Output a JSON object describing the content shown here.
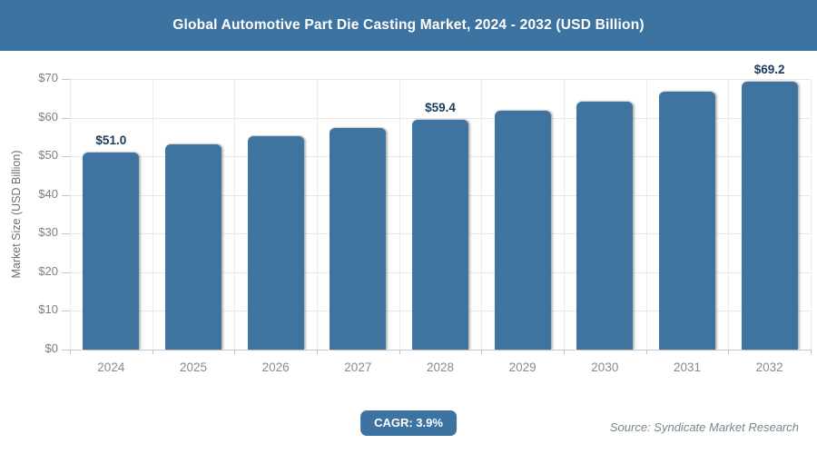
{
  "header": {
    "title": "Global Automotive Part Die Casting Market, 2024 - 2032 (USD Billion)"
  },
  "chart_data": {
    "type": "bar",
    "title": "Global Automotive Part Die Casting Market, 2024 - 2032 (USD Billion)",
    "categories": [
      "2024",
      "2025",
      "2026",
      "2027",
      "2028",
      "2029",
      "2030",
      "2031",
      "2032"
    ],
    "values": [
      51.0,
      53.0,
      55.1,
      57.2,
      59.4,
      61.7,
      64.1,
      66.6,
      69.2
    ],
    "data_labels": [
      "$51.0",
      null,
      null,
      null,
      "$59.4",
      null,
      null,
      null,
      "$69.2"
    ],
    "xlabel": "",
    "ylabel": "Market Size (USD Billion)",
    "ylim": [
      0,
      70
    ],
    "ytick_step": 10,
    "ytick_labels": [
      "$0",
      "$10",
      "$20",
      "$30",
      "$40",
      "$50",
      "$60",
      "$70"
    ],
    "grid": true,
    "legend": "none"
  },
  "footer": {
    "cagr_label": "CAGR: 3.9%",
    "source": "Source: Syndicate Market Research"
  },
  "colors": {
    "header_bg": "#3d73a0",
    "bar_fill": "#3f74a1",
    "badge_bg": "#3d73a0",
    "value_label": "#1b3a5c"
  }
}
